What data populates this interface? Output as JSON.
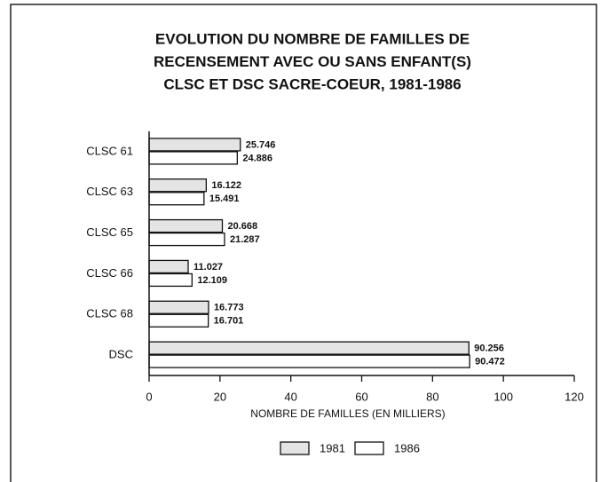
{
  "chart_data": {
    "type": "hbar",
    "title": [
      "EVOLUTION DU NOMBRE DE FAMILLES DE",
      "RECENSEMENT AVEC OU SANS ENFANT(S)",
      "CLSC ET DSC SACRE-COEUR, 1981-1986"
    ],
    "categories": [
      "CLSC 61",
      "CLSC 63",
      "CLSC 65",
      "CLSC 66",
      "CLSC 68",
      "DSC"
    ],
    "series": [
      {
        "name": "1981",
        "color": "#e4e4e4",
        "values": [
          25.746,
          16.122,
          20.668,
          11.027,
          16.773,
          90.256
        ]
      },
      {
        "name": "1986",
        "color": "#ffffff",
        "values": [
          24.886,
          15.491,
          21.287,
          12.109,
          16.701,
          90.472
        ]
      }
    ],
    "xlabel": "NOMBRE DE FAMILLES (EN MILLIERS)",
    "xlim": [
      0,
      120
    ],
    "xticks": [
      0,
      20,
      40,
      60,
      80,
      100,
      120
    ],
    "legend": "bottom"
  }
}
